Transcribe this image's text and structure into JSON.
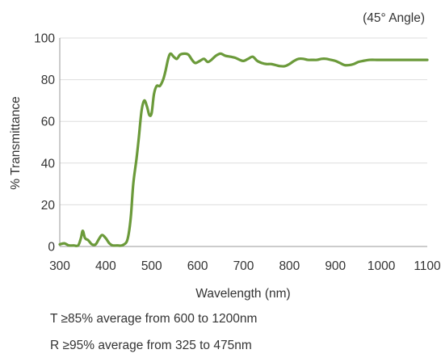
{
  "chart_data": {
    "type": "line",
    "title": "",
    "annotation": "(45° Angle)",
    "xlabel": "Wavelength (nm)",
    "ylabel": "% Transmittance",
    "xlim": [
      300,
      1100
    ],
    "ylim": [
      0,
      100
    ],
    "x_ticks": [
      "300",
      "400",
      "500",
      "600",
      "700",
      "800",
      "900",
      "1000",
      "1100"
    ],
    "y_ticks": [
      "0",
      "20",
      "40",
      "60",
      "80",
      "100"
    ],
    "x_tick_values": [
      300,
      400,
      500,
      600,
      700,
      800,
      900,
      1000,
      1100
    ],
    "y_tick_values": [
      0,
      20,
      40,
      60,
      80,
      100
    ],
    "grid": "horizontal",
    "series": [
      {
        "color": "#6b9a3a",
        "points": [
          [
            300,
            1
          ],
          [
            310,
            1.5
          ],
          [
            320,
            0.5
          ],
          [
            330,
            0.5
          ],
          [
            340,
            0.5
          ],
          [
            346,
            4
          ],
          [
            350,
            7.5
          ],
          [
            355,
            4
          ],
          [
            362,
            3
          ],
          [
            370,
            1
          ],
          [
            378,
            1
          ],
          [
            385,
            3.5
          ],
          [
            392,
            5.5
          ],
          [
            400,
            4
          ],
          [
            408,
            1.5
          ],
          [
            415,
            0.5
          ],
          [
            425,
            0.5
          ],
          [
            435,
            0.5
          ],
          [
            445,
            2
          ],
          [
            450,
            6
          ],
          [
            455,
            15
          ],
          [
            460,
            30
          ],
          [
            467,
            42
          ],
          [
            472,
            52
          ],
          [
            478,
            65
          ],
          [
            484,
            70
          ],
          [
            490,
            67
          ],
          [
            495,
            63
          ],
          [
            500,
            64
          ],
          [
            505,
            73
          ],
          [
            511,
            77
          ],
          [
            518,
            77
          ],
          [
            525,
            80
          ],
          [
            530,
            84
          ],
          [
            536,
            90
          ],
          [
            541,
            92.5
          ],
          [
            548,
            91
          ],
          [
            555,
            90
          ],
          [
            562,
            92
          ],
          [
            572,
            92.5
          ],
          [
            580,
            92
          ],
          [
            588,
            89.5
          ],
          [
            595,
            88
          ],
          [
            605,
            89
          ],
          [
            614,
            90
          ],
          [
            622,
            88.5
          ],
          [
            630,
            89.5
          ],
          [
            640,
            91.5
          ],
          [
            650,
            92.5
          ],
          [
            660,
            91.5
          ],
          [
            672,
            91
          ],
          [
            682,
            90.5
          ],
          [
            692,
            89.5
          ],
          [
            700,
            89
          ],
          [
            710,
            90
          ],
          [
            720,
            91
          ],
          [
            730,
            89
          ],
          [
            740,
            88
          ],
          [
            750,
            87.5
          ],
          [
            760,
            87.5
          ],
          [
            770,
            87
          ],
          [
            780,
            86.5
          ],
          [
            790,
            86.5
          ],
          [
            800,
            87.5
          ],
          [
            810,
            89
          ],
          [
            820,
            90
          ],
          [
            830,
            90
          ],
          [
            840,
            89.5
          ],
          [
            850,
            89.5
          ],
          [
            860,
            89.5
          ],
          [
            870,
            90
          ],
          [
            880,
            90
          ],
          [
            890,
            89.5
          ],
          [
            900,
            89
          ],
          [
            910,
            88
          ],
          [
            920,
            87
          ],
          [
            930,
            87
          ],
          [
            940,
            87.5
          ],
          [
            950,
            88.5
          ],
          [
            960,
            89
          ],
          [
            975,
            89.5
          ],
          [
            990,
            89.5
          ],
          [
            1000,
            89.5
          ],
          [
            1100,
            89.5
          ]
        ]
      }
    ]
  },
  "notes": {
    "transmission": "T ≥85% average from 600 to 1200nm",
    "reflection": "R ≥95% average from 325 to 475nm"
  }
}
